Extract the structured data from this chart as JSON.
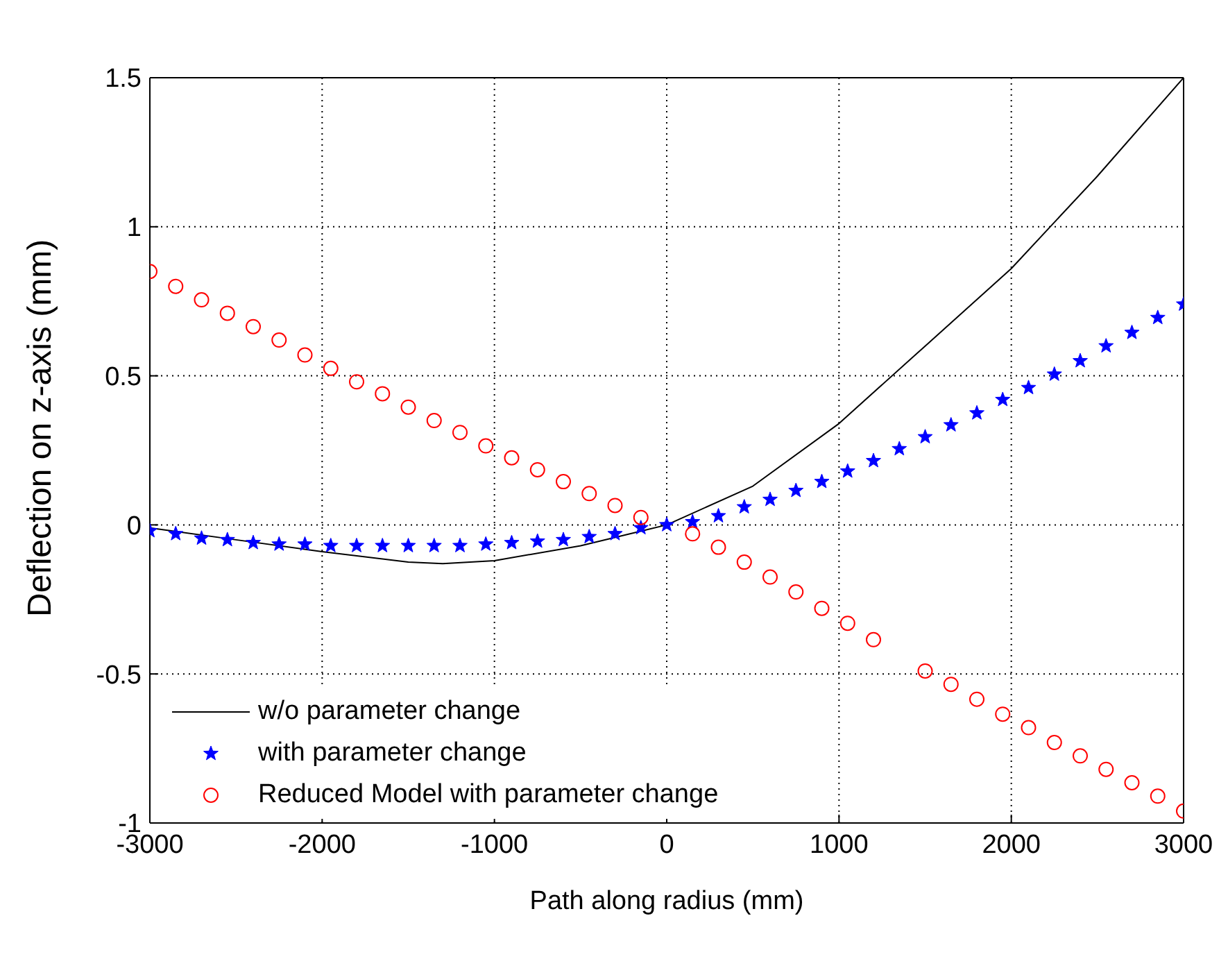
{
  "chart_data": {
    "type": "line",
    "xlabel": "Path along radius (mm)",
    "ylabel": "Deflection on z-axis (mm)",
    "xlim": [
      -3000,
      3000
    ],
    "xticks": [
      -3000,
      -2000,
      -1000,
      0,
      1000,
      2000,
      3000
    ],
    "ylim": [
      -1,
      1.5
    ],
    "yticks": [
      -1,
      -0.5,
      0,
      0.5,
      1,
      1.5
    ],
    "grid": true,
    "legend": "bottom left",
    "series": [
      {
        "name": "w/o parameter change",
        "color": "#000000",
        "marker": "none",
        "line_style": "solid",
        "x": [
          -3000,
          -2500,
          -2000,
          -1500,
          -1300,
          -1000,
          -500,
          0,
          500,
          1000,
          1500,
          2000,
          2500,
          3000
        ],
        "values": [
          -0.01,
          -0.05,
          -0.09,
          -0.125,
          -0.13,
          -0.12,
          -0.07,
          0,
          0.13,
          0.34,
          0.6,
          0.86,
          1.17,
          1.5
        ]
      },
      {
        "name": "with parameter change",
        "type": "scatter",
        "color": "#0000ff",
        "marker": "star",
        "x": [
          -3000,
          -2850,
          -2700,
          -2550,
          -2400,
          -2250,
          -2100,
          -1950,
          -1800,
          -1650,
          -1500,
          -1350,
          -1200,
          -1050,
          -900,
          -750,
          -600,
          -450,
          -300,
          -150,
          0,
          150,
          300,
          450,
          600,
          750,
          900,
          1050,
          1200,
          1350,
          1500,
          1650,
          1800,
          1950,
          2100,
          2250,
          2400,
          2550,
          2700,
          2850,
          3000
        ],
        "values": [
          -0.02,
          -0.03,
          -0.045,
          -0.05,
          -0.06,
          -0.065,
          -0.065,
          -0.07,
          -0.07,
          -0.07,
          -0.07,
          -0.07,
          -0.07,
          -0.065,
          -0.06,
          -0.055,
          -0.05,
          -0.04,
          -0.03,
          -0.01,
          0,
          0.01,
          0.03,
          0.06,
          0.085,
          0.115,
          0.145,
          0.18,
          0.215,
          0.255,
          0.295,
          0.335,
          0.375,
          0.42,
          0.46,
          0.505,
          0.55,
          0.6,
          0.645,
          0.695,
          0.74
        ]
      },
      {
        "name": "Reduced Model with parameter change",
        "type": "scatter",
        "color": "#ff0000",
        "marker": "circle",
        "x": [
          -3000,
          -2850,
          -2700,
          -2550,
          -2400,
          -2250,
          -2100,
          -1950,
          -1800,
          -1650,
          -1500,
          -1350,
          -1200,
          -1050,
          -900,
          -750,
          -600,
          -450,
          -300,
          -150,
          150,
          300,
          450,
          600,
          750,
          900,
          1050,
          1200,
          1350,
          1500,
          1650,
          1800,
          1950,
          2100,
          2250,
          2400,
          2550,
          2700,
          2850,
          3000
        ],
        "values": [
          0.85,
          0.8,
          0.755,
          0.71,
          0.665,
          0.62,
          0.57,
          0.525,
          0.48,
          0.44,
          0.395,
          0.35,
          0.31,
          0.265,
          0.225,
          0.185,
          0.145,
          0.105,
          0.065,
          0.025,
          -0.03,
          -0.075,
          -0.125,
          -0.175,
          -0.225,
          -0.28,
          -0.33,
          -0.385,
          null,
          -0.49,
          -0.535,
          -0.585,
          -0.635,
          -0.68,
          -0.73,
          -0.775,
          -0.82,
          -0.865,
          -0.91,
          -0.96
        ]
      }
    ]
  }
}
